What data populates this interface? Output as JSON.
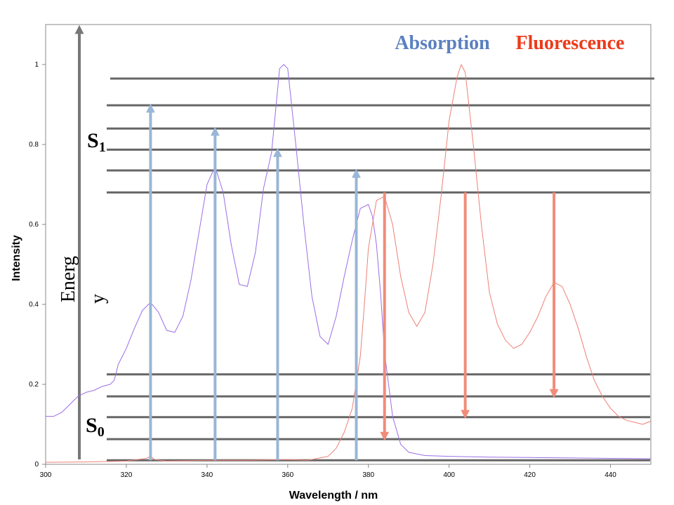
{
  "chart_data": {
    "type": "line",
    "xlabel": "Wavelength / nm",
    "ylabel": "Intensity",
    "xlim": [
      300,
      450
    ],
    "ylim": [
      0,
      1.1
    ],
    "x_ticks": [
      300,
      320,
      340,
      360,
      380,
      400,
      420,
      440
    ],
    "y_ticks": [
      0,
      0.2,
      0.4,
      0.6,
      0.8,
      1
    ],
    "legend": [
      "Absorption",
      "Fluorescence"
    ],
    "legend_placement": "top-right",
    "grid": false,
    "colors": {
      "absorption": "#9a6ee6",
      "fluorescence": "#ee7f77",
      "absorption_label": "#5b80c0",
      "fluorescence_label": "#ee3a1a",
      "levels": "#666666",
      "abs_arrow": "#9ab6d6",
      "flu_arrow": "#f08c7a"
    },
    "series": [
      {
        "name": "Absorption",
        "x": [
          300,
          302,
          304,
          306,
          308,
          310,
          312,
          314,
          316,
          317,
          318,
          319,
          320,
          322,
          324,
          326,
          328,
          330,
          332,
          334,
          336,
          338,
          340,
          342,
          344,
          346,
          348,
          350,
          352,
          354,
          356,
          358,
          359,
          360,
          362,
          364,
          366,
          368,
          370,
          372,
          374,
          376,
          378,
          380,
          381,
          382,
          383,
          384,
          386,
          388,
          390,
          394,
          400,
          410,
          420,
          430,
          440,
          450
        ],
        "values": [
          0.12,
          0.12,
          0.13,
          0.15,
          0.17,
          0.18,
          0.185,
          0.195,
          0.2,
          0.21,
          0.25,
          0.27,
          0.29,
          0.34,
          0.385,
          0.405,
          0.38,
          0.335,
          0.33,
          0.37,
          0.46,
          0.58,
          0.7,
          0.745,
          0.68,
          0.55,
          0.45,
          0.445,
          0.53,
          0.69,
          0.78,
          0.99,
          1.0,
          0.99,
          0.8,
          0.6,
          0.42,
          0.32,
          0.3,
          0.37,
          0.47,
          0.56,
          0.64,
          0.65,
          0.62,
          0.55,
          0.43,
          0.28,
          0.12,
          0.05,
          0.03,
          0.022,
          0.02,
          0.018,
          0.017,
          0.016,
          0.015,
          0.014
        ]
      },
      {
        "name": "Fluorescence",
        "x": [
          300,
          310,
          320,
          325,
          326,
          327,
          330,
          340,
          350,
          360,
          365,
          370,
          372,
          374,
          376,
          378,
          379,
          380,
          382,
          384,
          386,
          388,
          390,
          392,
          394,
          396,
          398,
          400,
          402,
          403,
          404,
          406,
          408,
          410,
          412,
          414,
          416,
          418,
          420,
          422,
          424,
          426,
          428,
          430,
          432,
          434,
          436,
          438,
          440,
          442,
          444,
          446,
          448,
          450
        ],
        "values": [
          0.005,
          0.006,
          0.008,
          0.015,
          0.02,
          0.012,
          0.008,
          0.01,
          0.01,
          0.012,
          0.01,
          0.02,
          0.04,
          0.08,
          0.14,
          0.27,
          0.4,
          0.54,
          0.66,
          0.67,
          0.6,
          0.47,
          0.38,
          0.345,
          0.38,
          0.5,
          0.67,
          0.86,
          0.97,
          1.0,
          0.98,
          0.8,
          0.6,
          0.43,
          0.35,
          0.31,
          0.29,
          0.3,
          0.33,
          0.37,
          0.42,
          0.455,
          0.445,
          0.4,
          0.34,
          0.27,
          0.21,
          0.17,
          0.14,
          0.12,
          0.11,
          0.105,
          0.1,
          0.108
        ]
      }
    ],
    "diagram": {
      "energy_label": "Energy",
      "s1_label": "S",
      "s1_sub": "1",
      "s0_label": "S",
      "s0_sub": "0",
      "s1_levels": [
        0.68,
        0.735,
        0.787,
        0.84,
        0.898,
        0.965
      ],
      "s0_levels": [
        0.01,
        0.063,
        0.118,
        0.17,
        0.225
      ],
      "absorption_arrows": [
        {
          "x": 326,
          "from": 0.01,
          "to": 0.898
        },
        {
          "x": 342,
          "from": 0.01,
          "to": 0.84
        },
        {
          "x": 357.5,
          "from": 0.01,
          "to": 0.787
        },
        {
          "x": 377,
          "from": 0.01,
          "to": 0.735
        }
      ],
      "fluorescence_arrows": [
        {
          "x": 384,
          "from": 0.68,
          "to": 0.063
        },
        {
          "x": 404,
          "from": 0.68,
          "to": 0.118
        },
        {
          "x": 426,
          "from": 0.68,
          "to": 0.17
        }
      ]
    }
  }
}
